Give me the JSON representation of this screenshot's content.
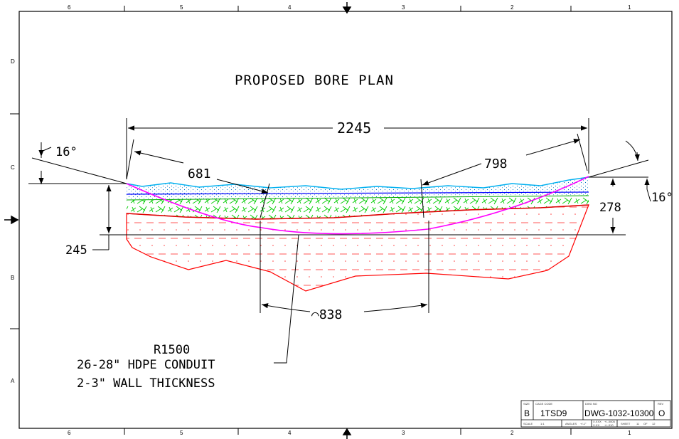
{
  "title": "PROPOSED BORE PLAN",
  "border": {
    "columns_top": [
      "6",
      "5",
      "4",
      "3",
      "2",
      "1"
    ],
    "columns_bottom": [
      "6",
      "5",
      "4",
      "3",
      "2",
      "1"
    ],
    "rows": [
      "D",
      "C",
      "B",
      "A"
    ]
  },
  "dimensions": {
    "overall_length": "2245",
    "entry_length": "681",
    "exit_length": "798",
    "bottom_arc": "⌒838",
    "entry_angle": "16°",
    "exit_angle": "16°",
    "entry_depth": "245",
    "exit_depth": "278"
  },
  "callout": {
    "line1": "R1500",
    "line2": "26-28\" HDPE CONDUIT",
    "line3": "2-3\" WALL THICKNESS"
  },
  "title_block": {
    "size_label": "SIZE",
    "size": "B",
    "cage_label": "CAGE CODE",
    "cage": "1TSD9",
    "dwg_label": "DWG NO",
    "dwg": "DWG-1032-10300",
    "rev_label": "REV",
    "rev": "O",
    "scale_label": "SCALE",
    "scale": "1:1",
    "angles_label": "ANGLES",
    "angles": "+/-1°",
    "tol1": "X.XXX",
    "tol2": "+/-.0005",
    "tol3": "X.XX",
    "tol4": "+/-.010",
    "sheet_label": "SHEET",
    "sheet": "11",
    "of_label": "OF",
    "of": "12"
  },
  "colors": {
    "line": "#000000",
    "top_layer": "#00b0f0",
    "water_line": "#0000ff",
    "green_layer": "#00cc00",
    "red_layer": "#ff0000",
    "bore_path": "#ff00ff"
  }
}
